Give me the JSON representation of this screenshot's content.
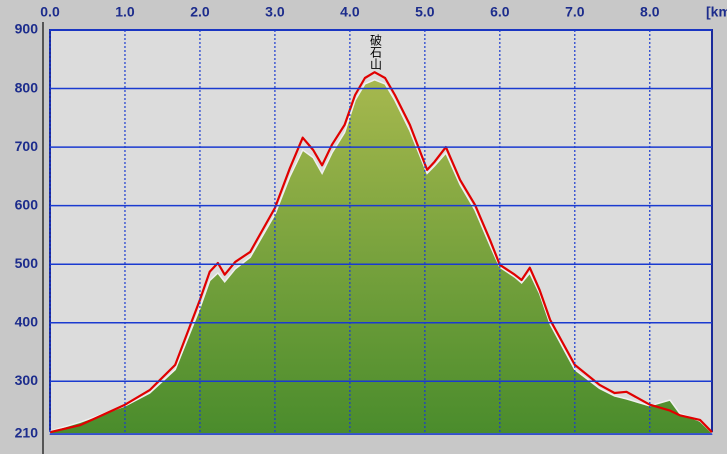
{
  "chart_data": {
    "type": "area",
    "x_label": "[km",
    "annotations": [
      {
        "text": "破石山",
        "x": 4.33
      }
    ],
    "xlim": [
      0,
      8.83
    ],
    "ylim": [
      210,
      900
    ],
    "xticks": [
      {
        "value": 0,
        "label": "0.0"
      },
      {
        "value": 1,
        "label": "1.0"
      },
      {
        "value": 2,
        "label": "2.0"
      },
      {
        "value": 3,
        "label": "3.0"
      },
      {
        "value": 4,
        "label": "4.0"
      },
      {
        "value": 5,
        "label": "5.0"
      },
      {
        "value": 6,
        "label": "6.0"
      },
      {
        "value": 7,
        "label": "7.0"
      },
      {
        "value": 8,
        "label": "8.0"
      }
    ],
    "yticks": [
      210,
      300,
      400,
      500,
      600,
      700,
      800,
      900
    ],
    "grid": true,
    "x": [
      0,
      0.4,
      1.0,
      1.33,
      1.67,
      2.0,
      2.13,
      2.24,
      2.33,
      2.47,
      2.67,
      3.0,
      3.2,
      3.37,
      3.51,
      3.63,
      3.76,
      3.93,
      4.07,
      4.2,
      4.33,
      4.47,
      4.6,
      4.8,
      5.03,
      5.13,
      5.28,
      5.47,
      5.67,
      5.87,
      6.0,
      6.2,
      6.29,
      6.4,
      6.53,
      6.67,
      7.0,
      7.33,
      7.53,
      7.69,
      8.0,
      8.27,
      8.4,
      8.67,
      8.83
    ],
    "series": [
      {
        "color": "#6f9e3a",
        "fill": true,
        "values": [
          215,
          230,
          258,
          280,
          320,
          425,
          472,
          485,
          470,
          492,
          512,
          585,
          650,
          695,
          682,
          655,
          690,
          725,
          780,
          808,
          815,
          808,
          780,
          728,
          655,
          668,
          690,
          636,
          592,
          532,
          495,
          478,
          468,
          485,
          450,
          398,
          320,
          288,
          275,
          270,
          258,
          268,
          245,
          232,
          212
        ]
      },
      {
        "color": "#e00000",
        "fill": false,
        "values": [
          213,
          225,
          260,
          285,
          328,
          439,
          487,
          502,
          482,
          504,
          521,
          596,
          664,
          716,
          695,
          669,
          704,
          738,
          789,
          818,
          828,
          818,
          789,
          738,
          661,
          675,
          700,
          644,
          601,
          541,
          499,
          482,
          473,
          494,
          456,
          405,
          328,
          294,
          280,
          282,
          260,
          250,
          242,
          234,
          213
        ]
      }
    ]
  }
}
